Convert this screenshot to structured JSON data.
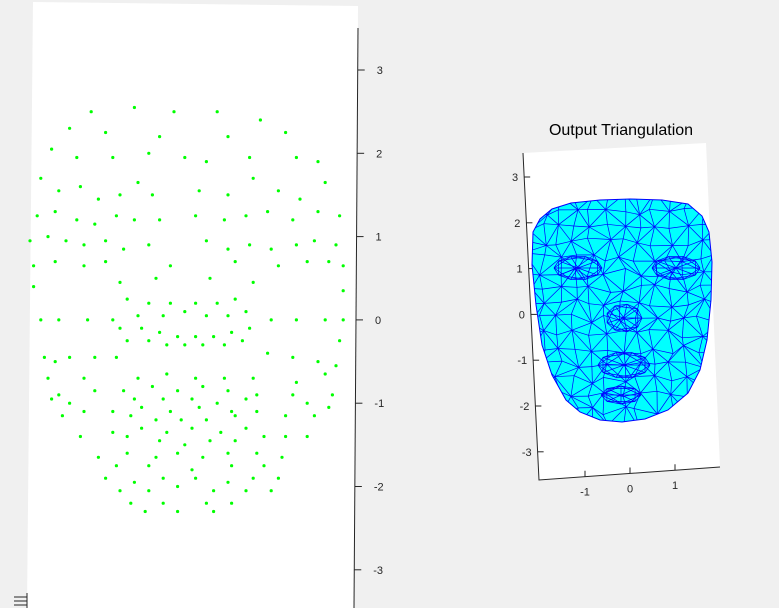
{
  "figure": {
    "background": "#f0f0f0"
  },
  "chart_data": [
    {
      "type": "scatter",
      "title": "",
      "xlabel": "",
      "ylabel": "",
      "ylim": [
        -3.5,
        3.5
      ],
      "yticks": [
        "3",
        "2",
        "1",
        "0",
        "-1",
        "-2",
        "-3"
      ],
      "grid": false,
      "legend": "none",
      "point_color": "#00ff00",
      "points": [
        [
          -1.4,
          2.5
        ],
        [
          -0.8,
          2.55
        ],
        [
          -0.25,
          2.5
        ],
        [
          0.35,
          2.5
        ],
        [
          0.95,
          2.4
        ],
        [
          -1.7,
          2.3
        ],
        [
          -1.2,
          2.25
        ],
        [
          -0.45,
          2.2
        ],
        [
          0.5,
          2.2
        ],
        [
          1.3,
          2.25
        ],
        [
          -1.95,
          2.05
        ],
        [
          -1.6,
          1.95
        ],
        [
          -1.1,
          1.95
        ],
        [
          -0.6,
          2.0
        ],
        [
          -0.1,
          1.95
        ],
        [
          0.2,
          1.9
        ],
        [
          0.8,
          1.95
        ],
        [
          1.45,
          1.95
        ],
        [
          1.75,
          1.9
        ],
        [
          -2.1,
          1.7
        ],
        [
          -1.85,
          1.55
        ],
        [
          -1.55,
          1.6
        ],
        [
          -1.3,
          1.45
        ],
        [
          -1.0,
          1.5
        ],
        [
          -0.75,
          1.65
        ],
        [
          -0.55,
          1.5
        ],
        [
          0.1,
          1.55
        ],
        [
          0.5,
          1.5
        ],
        [
          0.85,
          1.7
        ],
        [
          1.2,
          1.55
        ],
        [
          1.5,
          1.45
        ],
        [
          1.85,
          1.65
        ],
        [
          -2.15,
          1.25
        ],
        [
          -1.9,
          1.3
        ],
        [
          -1.6,
          1.2
        ],
        [
          -1.35,
          1.15
        ],
        [
          -1.05,
          1.25
        ],
        [
          -0.8,
          1.2
        ],
        [
          -0.45,
          1.2
        ],
        [
          0.05,
          1.25
        ],
        [
          0.45,
          1.2
        ],
        [
          0.75,
          1.25
        ],
        [
          1.05,
          1.3
        ],
        [
          1.4,
          1.2
        ],
        [
          1.75,
          1.3
        ],
        [
          2.05,
          1.25
        ],
        [
          -2.25,
          0.95
        ],
        [
          -2.0,
          1.0
        ],
        [
          -1.75,
          0.95
        ],
        [
          -1.5,
          0.9
        ],
        [
          -1.2,
          0.95
        ],
        [
          -0.95,
          0.85
        ],
        [
          -0.6,
          0.9
        ],
        [
          0.2,
          0.95
        ],
        [
          0.5,
          0.85
        ],
        [
          0.8,
          0.9
        ],
        [
          1.1,
          0.85
        ],
        [
          1.45,
          0.9
        ],
        [
          1.7,
          0.95
        ],
        [
          2.0,
          0.9
        ],
        [
          -2.2,
          0.65
        ],
        [
          -1.9,
          0.7
        ],
        [
          -1.5,
          0.65
        ],
        [
          -1.2,
          0.7
        ],
        [
          -0.3,
          0.65
        ],
        [
          0.6,
          0.7
        ],
        [
          1.2,
          0.65
        ],
        [
          1.6,
          0.7
        ],
        [
          1.9,
          0.7
        ],
        [
          2.1,
          0.65
        ],
        [
          -2.2,
          0.4
        ],
        [
          -1.0,
          0.45
        ],
        [
          -0.5,
          0.5
        ],
        [
          0.25,
          0.5
        ],
        [
          0.85,
          0.45
        ],
        [
          2.1,
          0.35
        ],
        [
          -0.9,
          0.25
        ],
        [
          -0.6,
          0.2
        ],
        [
          -0.3,
          0.2
        ],
        [
          0.05,
          0.2
        ],
        [
          0.35,
          0.2
        ],
        [
          0.6,
          0.25
        ],
        [
          -0.75,
          0.05
        ],
        [
          -0.4,
          0.05
        ],
        [
          -0.1,
          0.1
        ],
        [
          0.2,
          0.05
        ],
        [
          0.5,
          0.05
        ],
        [
          0.75,
          0.1
        ],
        [
          -2.1,
          0.0
        ],
        [
          -1.85,
          0.0
        ],
        [
          -1.45,
          0.0
        ],
        [
          -1.1,
          0.0
        ],
        [
          1.1,
          0.0
        ],
        [
          1.45,
          0.0
        ],
        [
          1.85,
          0.0
        ],
        [
          2.1,
          0.0
        ],
        [
          -1.0,
          -0.1
        ],
        [
          -0.7,
          -0.1
        ],
        [
          -0.45,
          -0.15
        ],
        [
          -0.2,
          -0.2
        ],
        [
          0.05,
          -0.2
        ],
        [
          0.3,
          -0.2
        ],
        [
          0.55,
          -0.15
        ],
        [
          0.8,
          -0.1
        ],
        [
          -0.9,
          -0.25
        ],
        [
          -0.6,
          -0.25
        ],
        [
          -0.35,
          -0.3
        ],
        [
          -0.1,
          -0.3
        ],
        [
          0.15,
          -0.3
        ],
        [
          0.45,
          -0.3
        ],
        [
          0.7,
          -0.25
        ],
        [
          2.05,
          -0.25
        ],
        [
          -2.05,
          -0.45
        ],
        [
          -1.9,
          -0.5
        ],
        [
          -1.7,
          -0.45
        ],
        [
          -1.35,
          -0.45
        ],
        [
          -1.05,
          -0.45
        ],
        [
          1.05,
          -0.4
        ],
        [
          1.4,
          -0.45
        ],
        [
          1.75,
          -0.5
        ],
        [
          2.0,
          -0.55
        ],
        [
          -2.0,
          -0.7
        ],
        [
          -1.5,
          -0.7
        ],
        [
          -0.75,
          -0.7
        ],
        [
          -0.35,
          -0.65
        ],
        [
          0.05,
          -0.7
        ],
        [
          0.45,
          -0.7
        ],
        [
          0.85,
          -0.7
        ],
        [
          1.45,
          -0.75
        ],
        [
          1.85,
          -0.65
        ],
        [
          -1.85,
          -0.9
        ],
        [
          -1.35,
          -0.85
        ],
        [
          -0.95,
          -0.85
        ],
        [
          -0.55,
          -0.8
        ],
        [
          -0.2,
          -0.85
        ],
        [
          0.15,
          -0.8
        ],
        [
          0.5,
          -0.85
        ],
        [
          0.9,
          -0.9
        ],
        [
          1.4,
          -0.9
        ],
        [
          1.95,
          -0.9
        ],
        [
          -1.95,
          -0.95
        ],
        [
          -0.8,
          -0.95
        ],
        [
          -0.4,
          -0.95
        ],
        [
          0.0,
          -0.95
        ],
        [
          0.35,
          -1.0
        ],
        [
          0.75,
          -0.95
        ],
        [
          -1.7,
          -1.0
        ],
        [
          -0.7,
          -1.05
        ],
        [
          -0.3,
          -1.1
        ],
        [
          0.1,
          -1.05
        ],
        [
          0.55,
          -1.1
        ],
        [
          1.6,
          -1.0
        ],
        [
          1.9,
          -1.05
        ],
        [
          -1.8,
          -1.15
        ],
        [
          -1.5,
          -1.1
        ],
        [
          -1.1,
          -1.1
        ],
        [
          -0.85,
          -1.15
        ],
        [
          -0.5,
          -1.2
        ],
        [
          -0.15,
          -1.2
        ],
        [
          0.2,
          -1.2
        ],
        [
          0.6,
          -1.15
        ],
        [
          0.9,
          -1.1
        ],
        [
          1.3,
          -1.15
        ],
        [
          1.7,
          -1.15
        ],
        [
          -0.7,
          -1.3
        ],
        [
          -0.35,
          -1.35
        ],
        [
          0.0,
          -1.3
        ],
        [
          0.4,
          -1.35
        ],
        [
          0.75,
          -1.3
        ],
        [
          -1.55,
          -1.4
        ],
        [
          -1.1,
          -1.35
        ],
        [
          -0.9,
          -1.4
        ],
        [
          -0.45,
          -1.45
        ],
        [
          -0.1,
          -1.5
        ],
        [
          0.25,
          -1.45
        ],
        [
          0.6,
          -1.45
        ],
        [
          1.0,
          -1.4
        ],
        [
          1.3,
          -1.4
        ],
        [
          1.6,
          -1.4
        ],
        [
          -1.3,
          -1.65
        ],
        [
          -0.9,
          -1.6
        ],
        [
          -0.5,
          -1.65
        ],
        [
          -0.2,
          -1.6
        ],
        [
          0.15,
          -1.65
        ],
        [
          0.5,
          -1.6
        ],
        [
          0.9,
          -1.6
        ],
        [
          1.25,
          -1.65
        ],
        [
          -1.05,
          -1.75
        ],
        [
          -0.6,
          -1.75
        ],
        [
          0.0,
          -1.8
        ],
        [
          0.55,
          -1.75
        ],
        [
          1.0,
          -1.75
        ],
        [
          -1.2,
          -1.9
        ],
        [
          -0.8,
          -1.95
        ],
        [
          -0.4,
          -1.9
        ],
        [
          0.05,
          -1.9
        ],
        [
          0.5,
          -1.95
        ],
        [
          0.85,
          -1.9
        ],
        [
          1.2,
          -1.9
        ],
        [
          -1.0,
          -2.05
        ],
        [
          -0.6,
          -2.05
        ],
        [
          -0.2,
          -2.0
        ],
        [
          0.3,
          -2.05
        ],
        [
          0.75,
          -2.05
        ],
        [
          1.1,
          -2.05
        ],
        [
          -0.85,
          -2.2
        ],
        [
          -0.4,
          -2.2
        ],
        [
          0.2,
          -2.2
        ],
        [
          0.55,
          -2.2
        ],
        [
          -0.65,
          -2.3
        ],
        [
          -0.2,
          -2.3
        ],
        [
          0.3,
          -2.3
        ]
      ]
    },
    {
      "type": "surface",
      "title": "Output Triangulation",
      "xlabel": "",
      "ylabel": "",
      "xlim": [
        -2,
        2
      ],
      "ylim": [
        -3.5,
        3.5
      ],
      "xticks": [
        "-1",
        "0",
        "1"
      ],
      "yticks": [
        "3",
        "2",
        "1",
        "0",
        "-1",
        "-2",
        "-3"
      ],
      "face_color": "#00ffff",
      "edge_color": "#0000ff"
    }
  ]
}
